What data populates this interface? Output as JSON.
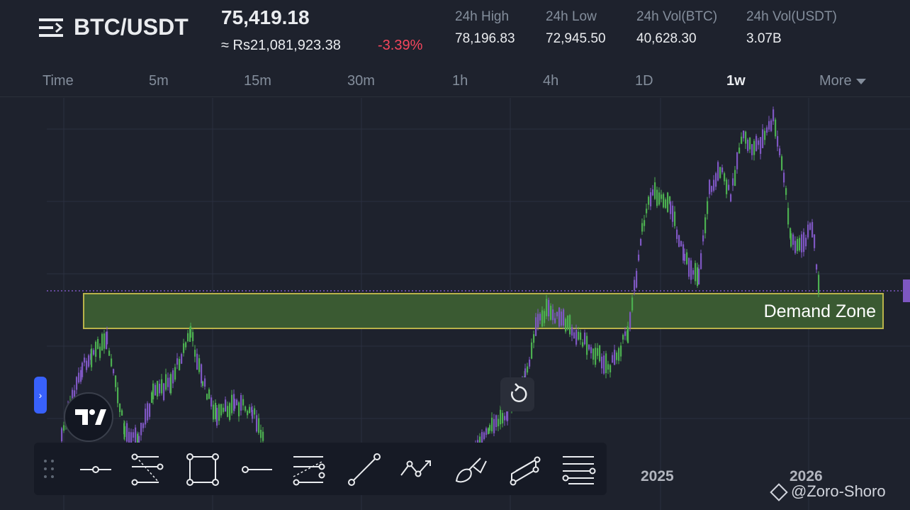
{
  "header": {
    "pair": "BTC/USDT",
    "price": "75,419.18",
    "local_price": "≈ Rs21,081,923.38",
    "change": "-3.39%",
    "stats": [
      {
        "label": "24h High",
        "value": "78,196.83"
      },
      {
        "label": "24h Low",
        "value": "72,945.50"
      },
      {
        "label": "24h Vol(BTC)",
        "value": "40,628.30"
      },
      {
        "label": "24h Vol(USDT)",
        "value": "3.07B"
      }
    ]
  },
  "tabs": [
    {
      "label": "Time"
    },
    {
      "label": "5m"
    },
    {
      "label": "15m"
    },
    {
      "label": "30m"
    },
    {
      "label": "1h"
    },
    {
      "label": "4h"
    },
    {
      "label": "1D"
    },
    {
      "label": "1w",
      "active": true
    },
    {
      "label": "More"
    }
  ],
  "chart": {
    "zone_label": "Demand Zone",
    "x_labels": [
      "2025",
      "2026"
    ]
  },
  "toolbar": {
    "tools": [
      "horizontal-ray-tool",
      "fib-retracement-tool",
      "rectangle-tool",
      "horizontal-line-tool",
      "parallel-channel-tool",
      "trend-line-tool",
      "path-tool",
      "brush-tool",
      "pitchfork-tool",
      "fib-levels-tool"
    ]
  },
  "watermark": "@Zoro-Shoro",
  "colors": {
    "background": "#1e222d",
    "up": "#4caf50",
    "down": "#7e57c2",
    "negative": "#f6465d",
    "zone_fill": "#3a5a32",
    "zone_border": "#b9b24a",
    "accent": "#3861fb"
  }
}
